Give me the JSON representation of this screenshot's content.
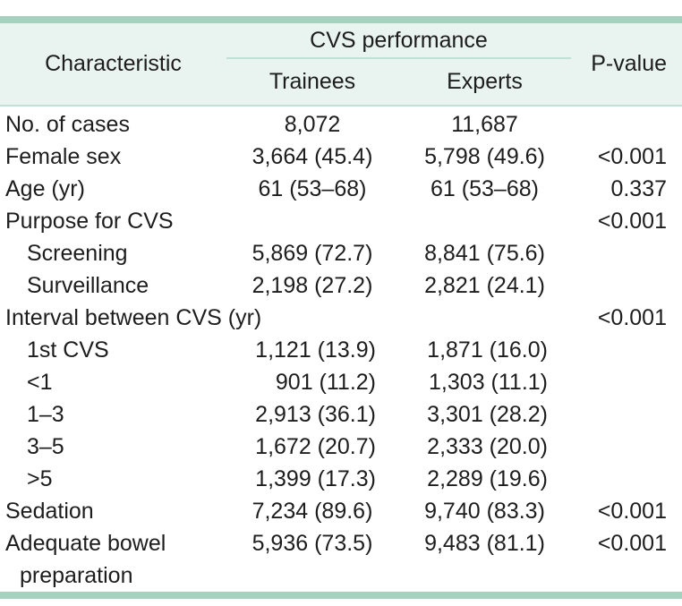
{
  "table": {
    "header": {
      "characteristic": "Characteristic",
      "group": "CVS performance",
      "sub1": "Trainees",
      "sub2": "Experts",
      "pvalue": "P-value"
    },
    "rows": [
      {
        "label": "No. of cases",
        "trainees": "8,072",
        "experts": "11,687",
        "p": ""
      },
      {
        "label": "Female sex",
        "trainees": "3,664 (45.4)",
        "experts": "5,798 (49.6)",
        "p": "<0.001"
      },
      {
        "label": "Age (yr)",
        "trainees": "61 (53–68)",
        "experts": "61 (53–68)",
        "p": "0.337"
      },
      {
        "label": "Purpose for CVS",
        "trainees": "",
        "experts": "",
        "p": "<0.001"
      },
      {
        "label": "Screening",
        "trainees": "5,869 (72.7)",
        "experts": "8,841 (75.6)",
        "p": ""
      },
      {
        "label": "Surveillance",
        "trainees": "2,198 (27.2)",
        "experts": "2,821 (24.1)",
        "p": ""
      },
      {
        "label": "Interval between CVS (yr)",
        "trainees": "",
        "experts": "",
        "p": "<0.001"
      },
      {
        "label": "1st CVS",
        "trainees": "1,121 (13.9)",
        "experts": "1,871 (16.0)",
        "p": ""
      },
      {
        "label": "<1",
        "trainees": "901 (11.2)",
        "experts": "1,303 (11.1)",
        "p": ""
      },
      {
        "label": "1–3",
        "trainees": "2,913 (36.1)",
        "experts": "3,301 (28.2)",
        "p": ""
      },
      {
        "label": "3–5",
        "trainees": "1,672 (20.7)",
        "experts": "2,333 (20.0)",
        "p": ""
      },
      {
        "label": ">5",
        "trainees": "1,399 (17.3)",
        "experts": "2,289 (19.6)",
        "p": ""
      },
      {
        "label": "Sedation",
        "trainees": "7,234 (89.6)",
        "experts": "9,740 (83.3)",
        "p": "<0.001"
      },
      {
        "label": "Adequate bowel",
        "label2": "preparation",
        "trainees": "5,936 (73.5)",
        "experts": "9,483 (81.1)",
        "p": "<0.001"
      }
    ],
    "colors": {
      "rule_bar": "#a6d1bf",
      "header_background": "#e9f3ef",
      "thin_rule": "#c2e0d3",
      "text": "#1d1d1d"
    }
  }
}
